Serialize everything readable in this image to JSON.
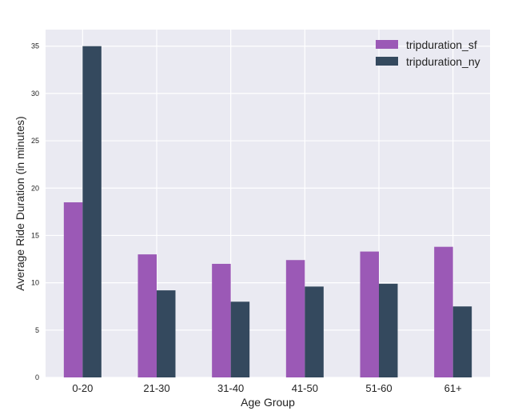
{
  "chart_data": {
    "type": "bar",
    "title": "",
    "xlabel": "Age Group",
    "ylabel": "Average Ride Duration (in minutes)",
    "categories": [
      "0-20",
      "21-30",
      "31-40",
      "41-50",
      "51-60",
      "61+"
    ],
    "series": [
      {
        "name": "tripduration_sf",
        "color": "#9b59b6",
        "values": [
          18.5,
          13.0,
          12.0,
          12.4,
          13.3,
          13.8
        ]
      },
      {
        "name": "tripduration_ny",
        "color": "#34495e",
        "values": [
          35.0,
          9.2,
          8.0,
          9.6,
          9.9,
          7.5
        ]
      }
    ],
    "ylim": [
      0,
      36.75
    ],
    "yticks": [
      0,
      5,
      10,
      15,
      20,
      25,
      30,
      35
    ],
    "grid": true,
    "legend_position": "top-right",
    "background": "#eaeaf2"
  }
}
